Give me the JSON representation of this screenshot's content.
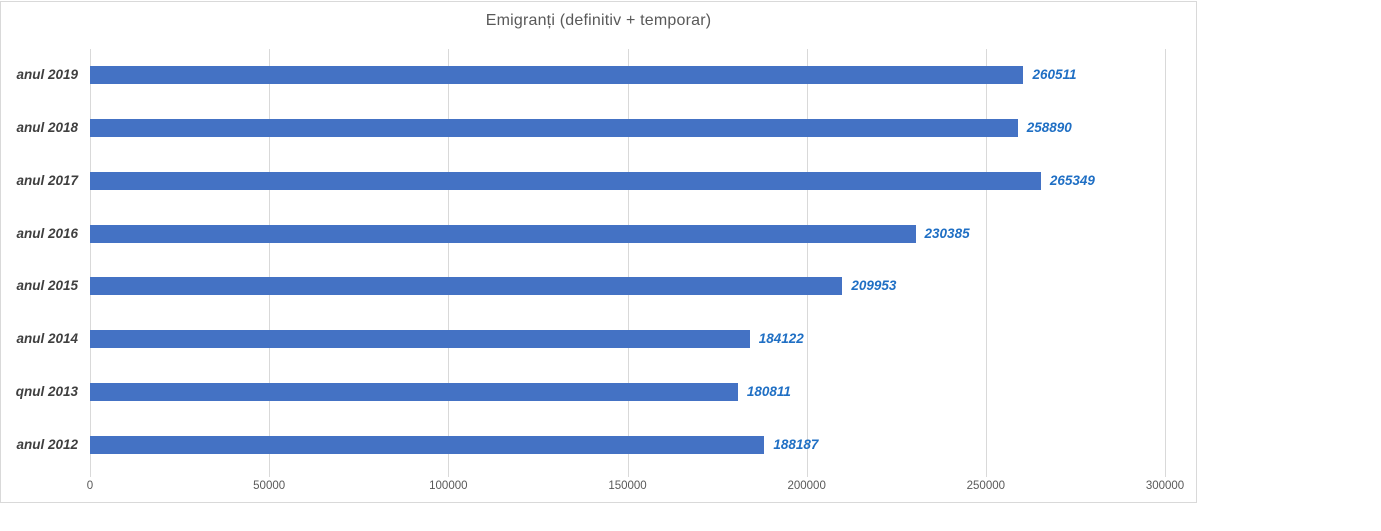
{
  "chart_data": {
    "type": "bar",
    "orientation": "horizontal",
    "title": "Emigranți (definitiv + temporar)",
    "categories": [
      "anul 2019",
      "anul 2018",
      "anul 2017",
      "anul 2016",
      "anul 2015",
      "anul 2014",
      "qnul 2013",
      "anul 2012"
    ],
    "values": [
      260511,
      258890,
      265349,
      230385,
      209953,
      184122,
      180811,
      188187
    ],
    "data_labels": [
      "260511",
      "258890",
      "265349",
      "230385",
      "209953",
      "184122",
      "180811",
      "188187"
    ],
    "x_tick_labels": [
      "0",
      "50000",
      "100000",
      "150000",
      "200000",
      "250000",
      "300000"
    ],
    "x_ticks": [
      0,
      50000,
      100000,
      150000,
      200000,
      250000,
      300000
    ],
    "xlim": [
      0,
      300000
    ],
    "xlabel": "",
    "ylabel": "",
    "grid": true,
    "legend": false,
    "colors": {
      "bar": "#4472c4",
      "data_label": "#1f6fc4",
      "title": "#595959",
      "tick_label": "#595959",
      "category_label": "#3f3f3f",
      "gridline": "#d9d9d9",
      "frame_border": "#d9d9d9"
    }
  }
}
